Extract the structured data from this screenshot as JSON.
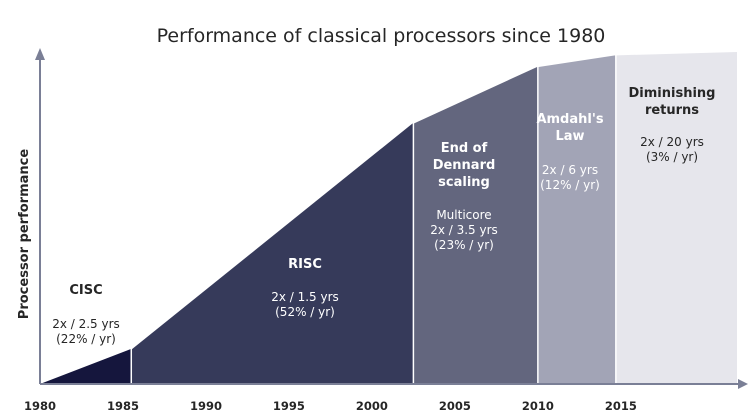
{
  "chart_data": {
    "type": "area",
    "title": "Performance of classical processors since 1980",
    "xlabel": "",
    "ylabel": "Processor performance",
    "x_ticks": [
      "1980",
      "1985",
      "1990",
      "1995",
      "2000",
      "2005",
      "2010",
      "2015"
    ],
    "xlim": [
      1980,
      2022
    ],
    "ylim": [
      0,
      1
    ],
    "grid": false,
    "legend": "none",
    "y_axis_scale": "relative",
    "curve": [
      {
        "x": 1980,
        "y": 0.0
      },
      {
        "x": 1985.5,
        "y": 0.105
      },
      {
        "x": 2002.5,
        "y": 0.785
      },
      {
        "x": 2010,
        "y": 0.955
      },
      {
        "x": 2014.7,
        "y": 0.99
      },
      {
        "x": 2022,
        "y": 1.0
      }
    ],
    "eras": [
      {
        "name_lines": [
          "CISC"
        ],
        "rate_lines": [
          "2x / 2.5 yrs",
          "(22% / yr)"
        ],
        "x_start": 1980,
        "x_end": 1985.5,
        "color": "#15163d",
        "text_color": "#262626"
      },
      {
        "name_lines": [
          "RISC"
        ],
        "rate_lines": [
          "2x / 1.5 yrs",
          "(52% / yr)"
        ],
        "x_start": 1985.5,
        "x_end": 2002.5,
        "color": "#363a5a",
        "text_color": "#ffffff"
      },
      {
        "name_lines": [
          "End of",
          "Dennard",
          "scaling"
        ],
        "rate_lines": [
          "Multicore",
          "2x / 3.5 yrs",
          "(23% / yr)"
        ],
        "x_start": 2002.5,
        "x_end": 2010,
        "color": "#63667e",
        "text_color": "#ffffff"
      },
      {
        "name_lines": [
          "Amdahl's",
          "Law"
        ],
        "rate_lines": [
          "2x / 6 yrs",
          "(12% / yr)"
        ],
        "x_start": 2010,
        "x_end": 2014.7,
        "color": "#a2a4b6",
        "text_color": "#ffffff"
      },
      {
        "name_lines": [
          "Diminishing",
          "returns"
        ],
        "rate_lines": [
          "2x / 20 yrs",
          "(3% / yr)"
        ],
        "x_start": 2014.7,
        "x_end": 2022,
        "color": "#e6e6ec",
        "text_color": "#262626"
      }
    ],
    "axis_color": "#7a7f96"
  }
}
